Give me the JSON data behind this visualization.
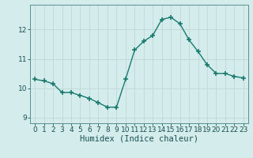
{
  "x": [
    0,
    1,
    2,
    3,
    4,
    5,
    6,
    7,
    8,
    9,
    10,
    11,
    12,
    13,
    14,
    15,
    16,
    17,
    18,
    19,
    20,
    21,
    22,
    23
  ],
  "y": [
    10.3,
    10.25,
    10.15,
    9.85,
    9.85,
    9.75,
    9.65,
    9.5,
    9.35,
    9.35,
    10.3,
    11.3,
    11.6,
    11.8,
    12.35,
    12.42,
    12.2,
    11.65,
    11.25,
    10.8,
    10.5,
    10.5,
    10.4,
    10.35
  ],
  "xlabel": "Humidex (Indice chaleur)",
  "ylim": [
    8.8,
    12.85
  ],
  "xlim": [
    -0.5,
    23.5
  ],
  "yticks": [
    9,
    10,
    11,
    12
  ],
  "xticks": [
    0,
    1,
    2,
    3,
    4,
    5,
    6,
    7,
    8,
    9,
    10,
    11,
    12,
    13,
    14,
    15,
    16,
    17,
    18,
    19,
    20,
    21,
    22,
    23
  ],
  "line_color": "#1a7a6e",
  "marker": "+",
  "marker_size": 4.0,
  "marker_lw": 1.2,
  "bg_color": "#d4edec",
  "grid_color_major": "#c0d8d4",
  "grid_color_minor": "#c0d8d4",
  "tick_label_fontsize": 6.5,
  "xlabel_fontsize": 7.5,
  "line_width": 1.0
}
